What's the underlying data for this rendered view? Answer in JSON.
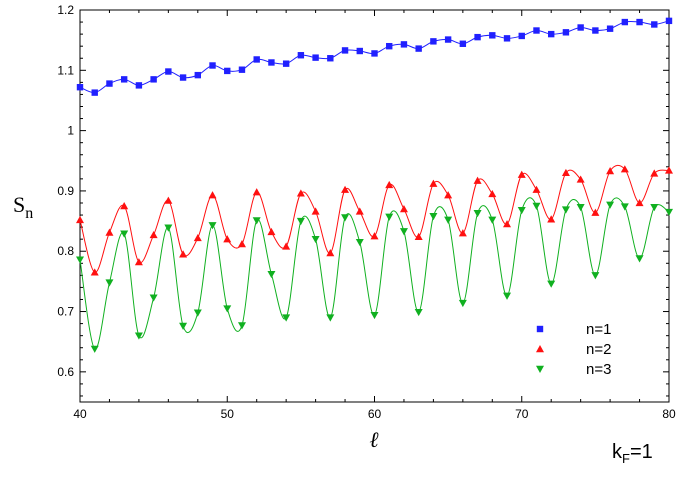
{
  "chart_data": {
    "type": "scatter",
    "title": "",
    "xlabel": "ℓ",
    "ylabel": "S",
    "ylabel_subscript": "n",
    "annotation": {
      "main": "k",
      "sub": "F",
      "tail": "=1"
    },
    "xlim": [
      40,
      80
    ],
    "ylim": [
      0.55,
      1.2
    ],
    "x_ticks": [
      40,
      50,
      60,
      70,
      80
    ],
    "y_ticks": [
      0.6,
      0.7,
      0.8,
      0.9,
      1,
      1.1,
      1.2
    ],
    "y_tick_labels": [
      "0.6",
      "0.7",
      "0.8",
      "0.9",
      "1",
      "1.1",
      "1.2"
    ],
    "grid": false,
    "legend_position": "bottom-right",
    "series": [
      {
        "name": "n=1",
        "color": "#2020ff",
        "marker": "square",
        "x": [
          40,
          41,
          42,
          43,
          44,
          45,
          46,
          47,
          48,
          49,
          50,
          51,
          52,
          53,
          54,
          55,
          56,
          57,
          58,
          59,
          60,
          61,
          62,
          63,
          64,
          65,
          66,
          67,
          68,
          69,
          70,
          71,
          72,
          73,
          74,
          75,
          76,
          77,
          78,
          79,
          80
        ],
        "y": [
          1.072,
          1.063,
          1.078,
          1.085,
          1.075,
          1.085,
          1.098,
          1.088,
          1.092,
          1.108,
          1.099,
          1.101,
          1.118,
          1.113,
          1.111,
          1.125,
          1.121,
          1.12,
          1.133,
          1.132,
          1.128,
          1.14,
          1.143,
          1.136,
          1.148,
          1.151,
          1.144,
          1.155,
          1.158,
          1.153,
          1.157,
          1.166,
          1.16,
          1.163,
          1.171,
          1.166,
          1.169,
          1.18,
          1.18,
          1.176,
          1.182
        ]
      },
      {
        "name": "n=2",
        "color": "#ff1010",
        "marker": "triangle-up",
        "x": [
          40,
          41,
          42,
          43,
          44,
          45,
          46,
          47,
          48,
          49,
          50,
          51,
          52,
          53,
          54,
          55,
          56,
          57,
          58,
          59,
          60,
          61,
          62,
          63,
          64,
          65,
          66,
          67,
          68,
          69,
          70,
          71,
          72,
          73,
          74,
          75,
          76,
          77,
          78,
          79,
          80
        ],
        "y": [
          0.852,
          0.765,
          0.831,
          0.875,
          0.782,
          0.827,
          0.884,
          0.795,
          0.822,
          0.893,
          0.82,
          0.812,
          0.898,
          0.832,
          0.808,
          0.896,
          0.866,
          0.797,
          0.902,
          0.866,
          0.825,
          0.91,
          0.87,
          0.824,
          0.912,
          0.893,
          0.83,
          0.917,
          0.895,
          0.845,
          0.927,
          0.902,
          0.853,
          0.93,
          0.919,
          0.864,
          0.933,
          0.936,
          0.88,
          0.929,
          0.934
        ]
      },
      {
        "name": "n=3",
        "color": "#10b020",
        "marker": "triangle-down",
        "x": [
          40,
          41,
          42,
          43,
          44,
          45,
          46,
          47,
          48,
          49,
          50,
          51,
          52,
          53,
          54,
          55,
          56,
          57,
          58,
          59,
          60,
          61,
          62,
          63,
          64,
          65,
          66,
          67,
          68,
          69,
          70,
          71,
          72,
          73,
          74,
          75,
          76,
          77,
          78,
          79,
          80
        ],
        "y": [
          0.786,
          0.638,
          0.748,
          0.829,
          0.66,
          0.723,
          0.839,
          0.676,
          0.698,
          0.843,
          0.705,
          0.677,
          0.851,
          0.762,
          0.69,
          0.85,
          0.82,
          0.69,
          0.856,
          0.815,
          0.694,
          0.857,
          0.833,
          0.699,
          0.858,
          0.852,
          0.714,
          0.863,
          0.852,
          0.726,
          0.868,
          0.875,
          0.746,
          0.869,
          0.873,
          0.76,
          0.877,
          0.874,
          0.788,
          0.873,
          0.865
        ]
      }
    ]
  }
}
